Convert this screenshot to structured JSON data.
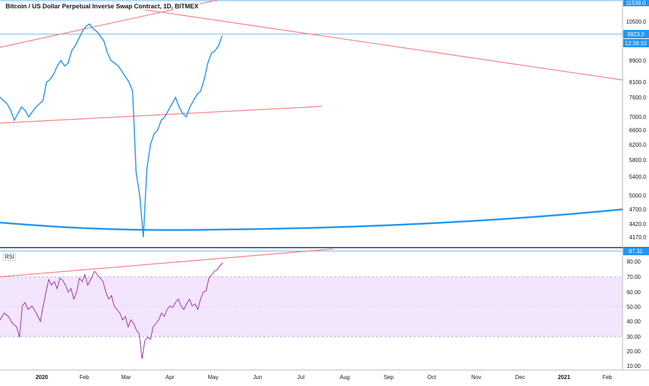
{
  "header": {
    "title": "Bitcoin / US Dollar Perpetual Inverse Swap Contract, 1D, BITMEX"
  },
  "price_axis": {
    "ticks": [
      "11539.0",
      "10500.0",
      "8900.0",
      "8100.0",
      "7600.0",
      "7000.0",
      "6600.0",
      "6200.0",
      "5800.0",
      "5400.0",
      "5000.0",
      "4700.0",
      "4420.0",
      "4170.0"
    ],
    "last_price": "9923.0",
    "countdown": "12:39:10"
  },
  "rsi_pane": {
    "label": "RSI",
    "ticks": [
      "80.00",
      "70.00",
      "60.00",
      "50.00",
      "40.00",
      "30.00",
      "20.00",
      "10.00"
    ],
    "last_value": "87.31"
  },
  "time_axis": {
    "ticks": [
      "2020",
      "Feb",
      "Mar",
      "Apr",
      "May",
      "Jun",
      "Jul",
      "Aug",
      "Sep",
      "Oct",
      "Nov",
      "Dec",
      "2021",
      "Feb"
    ]
  },
  "colors": {
    "price_line": "#2196f3",
    "trendline": "#f77c80",
    "rsi_line": "#9c27b0",
    "rsi_band": "#f1e1fb",
    "horizontal_line": "#64b5f6"
  },
  "chart_data": {
    "type": "line",
    "series": [
      {
        "values": [
          7600,
          7500,
          7400,
          7200,
          6900,
          7100,
          7300,
          7200,
          7000,
          7150,
          7300,
          7400,
          7500,
          8100,
          8200,
          8400,
          8700,
          8900,
          8700,
          8800,
          9300,
          9500,
          9800,
          10100,
          10300,
          10400,
          10200,
          10100,
          9900,
          9700,
          9200,
          8900,
          8800,
          8700,
          8500,
          8300,
          8100,
          7800,
          5500,
          5000,
          4100,
          5600,
          6200,
          6500,
          6600,
          6900,
          7000,
          7200,
          7400,
          7600,
          7300,
          7100,
          7000,
          7300,
          7500,
          7700,
          7800,
          8200,
          8800,
          9200,
          9300,
          9500,
          9923
        ]
      }
    ],
    "ylim": [
      4170,
      11539
    ]
  }
}
